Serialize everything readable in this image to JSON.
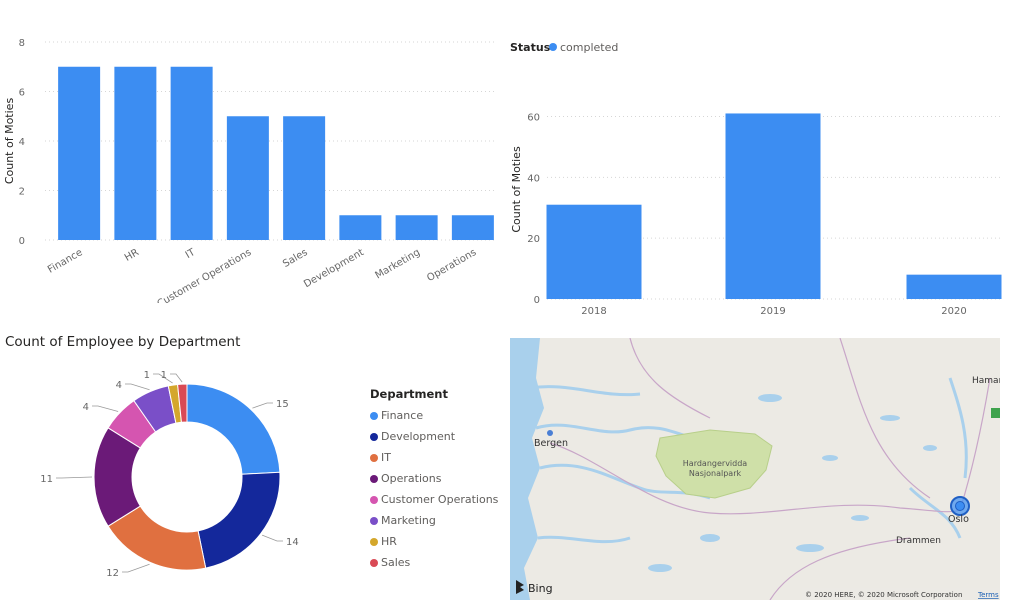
{
  "chart_departments": {
    "ylabel": "Count of Moties",
    "yticks": [
      0,
      2,
      4,
      6,
      8
    ],
    "ylim": [
      0,
      8
    ],
    "color": "#3c8df2"
  },
  "chart_years": {
    "legend_title": "Status",
    "legend_item": "completed",
    "ylabel": "Count of Moties",
    "yticks": [
      0,
      20,
      40,
      60
    ],
    "ylim": [
      0,
      72
    ],
    "color": "#3c8df2"
  },
  "donut": {
    "title": "Count of Employee by Department",
    "legend_title": "Department"
  },
  "map": {
    "city_bergen": "Bergen",
    "city_oslo": "Oslo",
    "city_drammen": "Drammen",
    "city_hamar": "Hamar",
    "park_label_1": "Hardangervidda",
    "park_label_2": "Nasjonalpark",
    "brand": "Bing",
    "copyright": "© 2020 HERE, © 2020 Microsoft Corporation",
    "terms": "Terms"
  },
  "chart_data": [
    {
      "type": "bar",
      "categories": [
        "Finance",
        "HR",
        "IT",
        "Customer Operations",
        "Sales",
        "Development",
        "Marketing",
        "Operations"
      ],
      "values": [
        7,
        7,
        7,
        5,
        5,
        1,
        1,
        1
      ],
      "title": "",
      "xlabel": "",
      "ylabel": "Count of Moties",
      "ylim": [
        0,
        8
      ],
      "grid": true
    },
    {
      "type": "bar",
      "categories": [
        "2018",
        "2019",
        "2020"
      ],
      "series": [
        {
          "name": "completed",
          "values": [
            31,
            61,
            8
          ]
        }
      ],
      "title": "",
      "xlabel": "",
      "ylabel": "Count of Moties",
      "ylim": [
        0,
        72
      ],
      "grid": true,
      "legend": "top-left"
    },
    {
      "type": "pie",
      "title": "Count of Employee by Department",
      "categories": [
        "Finance",
        "Development",
        "IT",
        "Operations",
        "Customer Operations",
        "Marketing",
        "HR",
        "Sales"
      ],
      "values": [
        15,
        14,
        12,
        11,
        4,
        4,
        1,
        1
      ],
      "colors": [
        "#3c8df2",
        "#14289b",
        "#e07040",
        "#6b1a78",
        "#d555b0",
        "#7a4fc8",
        "#d4a72c",
        "#d94a55"
      ],
      "legend": "right",
      "donut": true
    }
  ]
}
